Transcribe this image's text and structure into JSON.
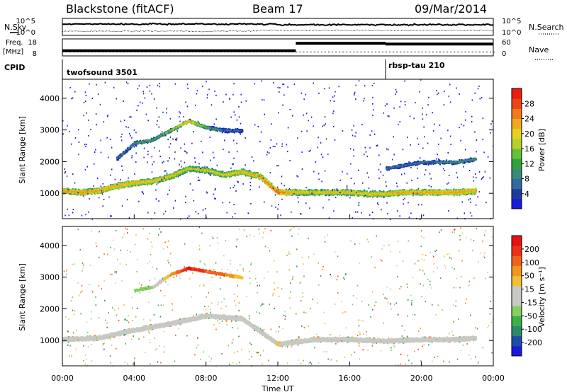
{
  "header": {
    "station": "Blackstone (fitACF)",
    "beam": "Beam 17",
    "date": "09/Mar/2014"
  },
  "top_panels": {
    "noise_left_label": "N.Sky",
    "noise_right_label": "N.Search",
    "noise_ticks_left": [
      "10^5",
      "10^0"
    ],
    "noise_ticks_right": [
      "10^5",
      "10^0"
    ],
    "freq_label_top": "Freq.",
    "freq_label_unit": "[MHz]",
    "freq_ticks": [
      "18",
      "8"
    ],
    "nave_label": "Nave",
    "nave_ticks": [
      "60",
      "0"
    ],
    "cpid_label": "CPID",
    "cpid_segments": [
      {
        "name": "twofsound 3501",
        "start_hour": 0,
        "end_hour": 18
      },
      {
        "name": "rbsp-tau 210",
        "start_hour": 18,
        "end_hour": 24
      }
    ],
    "freq_series": [
      {
        "start_hour": 0,
        "end_hour": 13,
        "value_mhz": 11
      },
      {
        "start_hour": 13,
        "end_hour": 18,
        "value_mhz": 16
      },
      {
        "start_hour": 18,
        "end_hour": 24,
        "value_mhz": 15.5
      }
    ]
  },
  "chart_data": [
    {
      "type": "heatmap",
      "title": "",
      "xlabel": "Time UT",
      "ylabel": "Slant Range [km]",
      "x_ticks": [
        "00:00",
        "04:00",
        "08:00",
        "12:00",
        "16:00",
        "20:00",
        "00:00"
      ],
      "xlim_hours": [
        0,
        24
      ],
      "y_ticks": [
        1000,
        2000,
        3000,
        4000
      ],
      "ylim": [
        200,
        4600
      ],
      "colorbar_label": "Power [dB]",
      "colorbar_ticks": [
        4,
        8,
        12,
        16,
        20,
        24,
        28
      ],
      "colorbar_range": [
        0,
        32
      ],
      "colorbar_colors": [
        "#1a1adc",
        "#1e3c9c",
        "#2f6aa0",
        "#3a8a78",
        "#2ea43e",
        "#66c234",
        "#b8d02a",
        "#e4d21e",
        "#f2a81c",
        "#f27a1a",
        "#ee4418",
        "#ee1c10"
      ],
      "series": [
        {
          "name": "",
          "points": [
            [
              0,
              1100,
              24
            ],
            [
              1,
              1050,
              25
            ],
            [
              2,
              1100,
              24
            ],
            [
              3,
              1250,
              24
            ],
            [
              4,
              1350,
              23
            ],
            [
              5,
              1400,
              22
            ],
            [
              6,
              1550,
              22
            ],
            [
              7,
              1800,
              20
            ],
            [
              8,
              1750,
              20
            ],
            [
              9,
              1600,
              21
            ],
            [
              10,
              1700,
              22
            ],
            [
              11,
              1550,
              24
            ],
            [
              12,
              1050,
              28
            ],
            [
              13,
              1050,
              22
            ],
            [
              14,
              1050,
              21
            ],
            [
              15,
              1050,
              22
            ],
            [
              16,
              1050,
              22
            ],
            [
              17,
              1000,
              22
            ],
            [
              18,
              1000,
              22
            ],
            [
              19,
              1050,
              24
            ],
            [
              20,
              1050,
              24
            ],
            [
              21,
              1050,
              24
            ],
            [
              22,
              1050,
              24
            ],
            [
              23,
              1100,
              24
            ]
          ]
        },
        {
          "name": "",
          "points": [
            [
              3,
              2100,
              10
            ],
            [
              4,
              2600,
              12
            ],
            [
              5,
              2700,
              14
            ],
            [
              6,
              3000,
              16
            ],
            [
              7,
              3300,
              24
            ],
            [
              8,
              3100,
              14
            ],
            [
              9,
              3000,
              10
            ],
            [
              10,
              3000,
              8
            ]
          ]
        },
        {
          "name": "",
          "points": [
            [
              18,
              1800,
              10
            ],
            [
              19,
              1900,
              10
            ],
            [
              20,
              2000,
              10
            ],
            [
              21,
              2000,
              11
            ],
            [
              22,
              2000,
              12
            ],
            [
              23,
              2100,
              12
            ]
          ]
        }
      ]
    },
    {
      "type": "heatmap",
      "title": "",
      "xlabel": "Time UT",
      "ylabel": "Slant Range [km]",
      "x_ticks": [
        "00:00",
        "04:00",
        "08:00",
        "12:00",
        "16:00",
        "20:00",
        "00:00"
      ],
      "xlim_hours": [
        0,
        24
      ],
      "y_ticks": [
        1000,
        2000,
        3000,
        4000
      ],
      "ylim": [
        200,
        4600
      ],
      "colorbar_label": "Velocity [m s⁻¹]",
      "colorbar_ticks": [
        200,
        100,
        50,
        15,
        -15,
        -50,
        -100,
        -200
      ],
      "colorbar_colors": [
        "#1a1adc",
        "#1e4ca8",
        "#2a8a6a",
        "#3cb04a",
        "#86d060",
        "#c8c8c4",
        "#c8c8c4",
        "#f0c030",
        "#f29420",
        "#f0641a",
        "#ee3018",
        "#e81010"
      ],
      "series": [
        {
          "name": "",
          "points": [
            [
              0,
              1050,
              0
            ],
            [
              2,
              1100,
              0
            ],
            [
              4,
              1350,
              0
            ],
            [
              6,
              1550,
              0
            ],
            [
              8,
              1800,
              0
            ],
            [
              10,
              1700,
              0
            ],
            [
              12,
              900,
              40
            ],
            [
              14,
              1050,
              0
            ],
            [
              16,
              1050,
              0
            ],
            [
              18,
              1000,
              0
            ],
            [
              20,
              1050,
              0
            ],
            [
              22,
              1050,
              0
            ],
            [
              23,
              1100,
              0
            ]
          ]
        },
        {
          "name": "",
          "points": [
            [
              4,
              2600,
              -60
            ],
            [
              5,
              2700,
              -40
            ],
            [
              6,
              3100,
              80
            ],
            [
              7,
              3300,
              200
            ],
            [
              8,
              3200,
              150
            ],
            [
              9,
              3100,
              120
            ],
            [
              10,
              3000,
              40
            ]
          ]
        }
      ]
    }
  ]
}
